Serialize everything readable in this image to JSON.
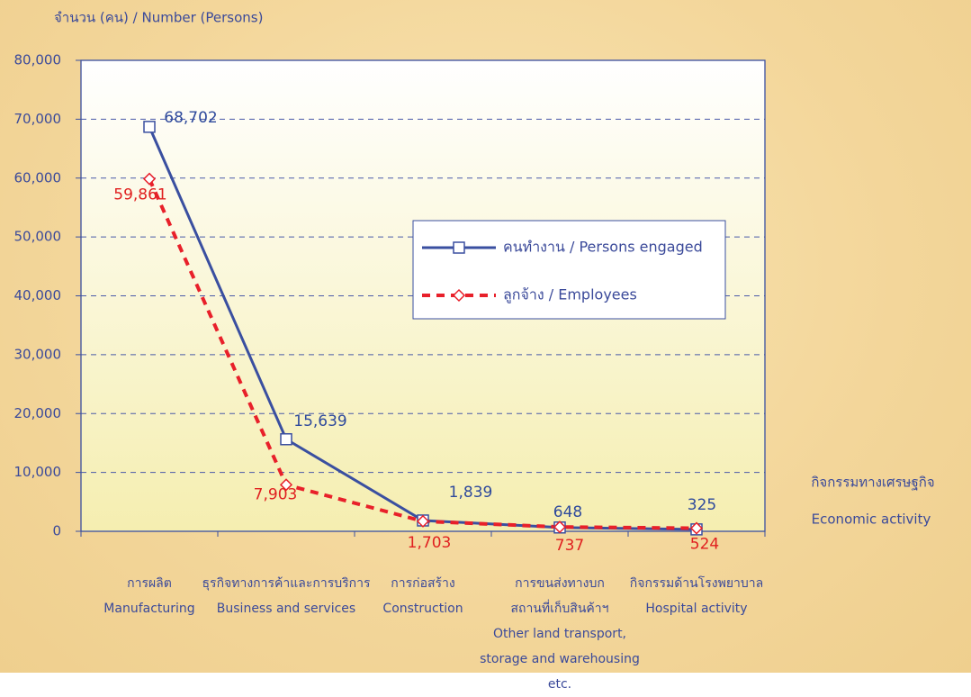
{
  "chart_data": {
    "type": "line",
    "y_axis_label": "จำนวน (คน) / Number  (Persons)",
    "x_axis_label": [
      "กิจกรรมทางเศรษฐกิจ",
      "Economic activity"
    ],
    "categories": [
      "การผลิต\nManufacturing",
      "ธุรกิจทางการค้าและการบริการ\nBusiness and services",
      "การก่อสร้าง\nConstruction",
      "การขนส่งทางบก\nสถานที่เก็บสินค้าฯ\nOther land transport,\nstorage and warehousing etc.",
      "กิจกรรมด้านโรงพยาบาล\nHospital activity"
    ],
    "series": [
      {
        "name": "คนทำงาน / Persons engaged",
        "color": "#3a4fa0",
        "marker": "square",
        "dash": false,
        "values": [
          68702,
          15639,
          1839,
          648,
          325
        ],
        "value_labels": [
          "68,702",
          "15,639",
          "1,839",
          "648",
          "325"
        ]
      },
      {
        "name": "ลูกจ้าง / Employees",
        "color": "#e8202a",
        "marker": "diamond",
        "dash": true,
        "values": [
          59861,
          7903,
          1703,
          737,
          524
        ],
        "value_labels": [
          "59,861",
          "7,903",
          "1,703",
          "737",
          "524"
        ]
      }
    ],
    "ylim": [
      0,
      80000
    ],
    "yticks": [
      0,
      {
        "value": 10000,
        "label": "10,000"
      },
      {
        "value": 20000,
        "label": "20,000"
      },
      {
        "value": 30000,
        "label": "30,000"
      },
      {
        "value": 40000,
        "label": "40,000"
      },
      {
        "value": 50000,
        "label": "50,000"
      },
      {
        "value": 60000,
        "label": "60,000"
      },
      {
        "value": 70000,
        "label": "70,000"
      },
      {
        "value": 80000,
        "label": "80,000"
      }
    ],
    "grid": true,
    "legend": "right"
  }
}
